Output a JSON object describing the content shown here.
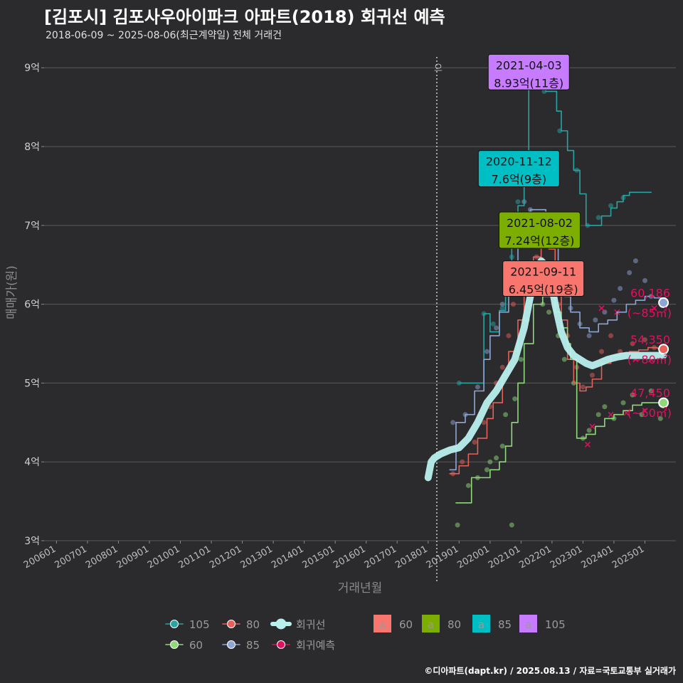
{
  "title": "[김포시] 김포사우아이파크 아파트(2018) 회귀선 예측",
  "subtitle": "2018-06-09 ~ 2025-08-06(최근계약일) 전체 거래건",
  "caption": "©디아파트(dapt.kr) / 2025.08.13 / 자료=국토교통부 실거래가",
  "colors": {
    "background": "#2b2b2d",
    "s105": "#2aa3a3",
    "s80": "#e8605a",
    "s85": "#8ea6d6",
    "s60": "#8fd97a",
    "regression": "#b8f0ee",
    "predict": "#e0115f",
    "label60": "#f8766d",
    "label80": "#7cae00",
    "label85": "#00bfc4",
    "label105": "#c77cff"
  },
  "chart_data": {
    "type": "line",
    "xlabel": "거래년월",
    "ylabel": "매매가(원)",
    "ylim": [
      3,
      9.3
    ],
    "yticks": [
      3,
      4,
      5,
      6,
      7,
      8,
      9
    ],
    "ytick_labels": [
      "3억",
      "4억",
      "5억",
      "6억",
      "7억",
      "8억",
      "9억"
    ],
    "xlim": [
      2005.6,
      2026.0
    ],
    "xticks": [
      2006.0,
      2007.0,
      2008.0,
      2009.0,
      2010.0,
      2011.0,
      2012.0,
      2013.0,
      2014.0,
      2015.0,
      2016.0,
      2017.0,
      2018.0,
      2019.0,
      2020.0,
      2021.0,
      2022.0,
      2023.0,
      2024.0,
      2025.0
    ],
    "xtick_labels": [
      "200601",
      "200701",
      "200801",
      "200901",
      "201001",
      "201101",
      "201201",
      "201301",
      "201401",
      "201501",
      "201601",
      "201701",
      "201801",
      "201901",
      "202001",
      "202101",
      "202201",
      "202301",
      "202401",
      "202501"
    ],
    "vline_x": 2018.28,
    "vline_text": "으",
    "grid": true,
    "series": [
      {
        "name": "105",
        "color": "#2aa3a3",
        "x": [
          2019.0,
          2019.5,
          2019.8,
          2020.0,
          2020.3,
          2020.5,
          2020.7,
          2020.9,
          2021.1,
          2021.25,
          2021.4,
          2021.6,
          2021.8,
          2022.0,
          2022.15,
          2022.3,
          2022.5,
          2022.7,
          2022.9,
          2023.1,
          2023.3,
          2023.6,
          2023.9,
          2024.1,
          2024.3,
          2024.5,
          2024.8,
          2025.2
        ],
        "y": [
          5.0,
          5.0,
          5.88,
          5.65,
          5.92,
          6.3,
          6.78,
          7.25,
          7.82,
          8.93,
          8.93,
          8.93,
          8.7,
          8.7,
          8.45,
          8.2,
          7.95,
          7.7,
          7.4,
          7.0,
          7.0,
          7.12,
          7.22,
          7.3,
          7.38,
          7.42,
          7.42,
          7.42
        ]
      },
      {
        "name": "85",
        "color": "#8ea6d6",
        "x": [
          2018.7,
          2018.9,
          2019.2,
          2019.5,
          2019.8,
          2020.0,
          2020.3,
          2020.6,
          2020.9,
          2021.1,
          2021.3,
          2021.5,
          2021.8,
          2022.0,
          2022.2,
          2022.4,
          2022.6,
          2022.9,
          2023.2,
          2023.5,
          2023.8,
          2024.1,
          2024.4,
          2024.7,
          2025.0,
          2025.3,
          2025.6
        ],
        "y": [
          3.9,
          4.5,
          4.6,
          4.9,
          5.3,
          5.6,
          5.9,
          6.3,
          6.75,
          7.1,
          7.2,
          7.2,
          7.0,
          6.8,
          6.5,
          6.1,
          5.9,
          5.7,
          5.65,
          5.75,
          5.8,
          5.9,
          6.0,
          6.05,
          6.1,
          6.08,
          6.02
        ]
      },
      {
        "name": "80",
        "color": "#e8605a",
        "x": [
          2018.7,
          2019.0,
          2019.3,
          2019.6,
          2019.9,
          2020.1,
          2020.4,
          2020.6,
          2020.9,
          2021.1,
          2021.4,
          2021.65,
          2021.9,
          2022.1,
          2022.3,
          2022.5,
          2022.7,
          2022.9,
          2023.1,
          2023.3,
          2023.6,
          2023.9,
          2024.2,
          2024.5,
          2024.8,
          2025.1,
          2025.4,
          2025.6
        ],
        "y": [
          3.85,
          3.95,
          4.1,
          4.3,
          4.55,
          4.75,
          5.1,
          5.4,
          5.8,
          6.2,
          6.6,
          6.95,
          6.7,
          6.3,
          5.8,
          5.3,
          5.0,
          4.9,
          4.95,
          5.05,
          5.25,
          5.35,
          5.38,
          5.4,
          5.42,
          5.45,
          5.44,
          5.43
        ]
      },
      {
        "name": "60",
        "color": "#8fd97a",
        "x": [
          2018.9,
          2019.1,
          2019.4,
          2019.7,
          2020.0,
          2020.3,
          2020.5,
          2020.7,
          2020.9,
          2021.1,
          2021.4,
          2021.7,
          2021.9,
          2022.1,
          2022.3,
          2022.5,
          2022.6,
          2022.8,
          2023.1,
          2023.4,
          2023.7,
          2024.0,
          2024.3,
          2024.6,
          2024.9,
          2025.2,
          2025.6
        ],
        "y": [
          3.48,
          3.48,
          3.8,
          3.8,
          3.9,
          4.0,
          4.2,
          4.5,
          5.0,
          5.5,
          6.0,
          6.1,
          6.1,
          5.9,
          5.7,
          5.5,
          5.3,
          4.3,
          4.35,
          4.45,
          4.55,
          4.6,
          4.65,
          4.72,
          4.75,
          4.75,
          4.75
        ]
      },
      {
        "name": "회귀선",
        "color": "#b8f0ee",
        "x": [
          2018.0,
          2018.1,
          2018.2,
          2018.4,
          2018.7,
          2019.0,
          2019.3,
          2019.6,
          2019.9,
          2020.2,
          2020.5,
          2020.8,
          2021.1,
          2021.4,
          2021.65,
          2021.9,
          2022.1,
          2022.3,
          2022.5,
          2022.7,
          2022.9,
          2023.1,
          2023.3,
          2023.5,
          2023.8,
          2024.1,
          2024.4,
          2024.7,
          2025.0,
          2025.3,
          2025.6
        ],
        "y": [
          3.8,
          4.0,
          4.05,
          4.1,
          4.15,
          4.18,
          4.3,
          4.5,
          4.75,
          4.9,
          5.1,
          5.3,
          5.7,
          6.3,
          6.55,
          6.45,
          6.0,
          5.65,
          5.45,
          5.35,
          5.3,
          5.25,
          5.22,
          5.25,
          5.3,
          5.33,
          5.35,
          5.35,
          5.35,
          5.35,
          5.35
        ]
      }
    ],
    "scatter_points": {
      "105": [
        [
          2019.0,
          5.0
        ],
        [
          2019.8,
          5.88
        ],
        [
          2020.1,
          5.75
        ],
        [
          2020.4,
          5.95
        ],
        [
          2020.7,
          6.6
        ],
        [
          2020.9,
          7.3
        ],
        [
          2021.3,
          8.92
        ],
        [
          2021.75,
          8.7
        ],
        [
          2022.25,
          8.2
        ],
        [
          2022.8,
          7.7
        ],
        [
          2023.15,
          7.0
        ],
        [
          2023.5,
          7.1
        ],
        [
          2023.9,
          7.25
        ],
        [
          2024.3,
          7.35
        ]
      ],
      "85": [
        [
          2018.8,
          4.5
        ],
        [
          2019.2,
          4.6
        ],
        [
          2019.6,
          4.95
        ],
        [
          2019.9,
          5.4
        ],
        [
          2020.2,
          5.7
        ],
        [
          2020.4,
          6.0
        ],
        [
          2020.6,
          6.3
        ],
        [
          2020.8,
          6.9
        ],
        [
          2021.1,
          7.3
        ],
        [
          2021.3,
          7.2
        ],
        [
          2021.6,
          7.1
        ],
        [
          2021.9,
          7.0
        ],
        [
          2022.1,
          6.8
        ],
        [
          2022.4,
          6.4
        ],
        [
          2022.6,
          5.95
        ],
        [
          2022.9,
          5.75
        ],
        [
          2023.2,
          5.6
        ],
        [
          2023.4,
          5.8
        ],
        [
          2023.7,
          5.9
        ],
        [
          2024.0,
          6.05
        ],
        [
          2024.2,
          6.2
        ],
        [
          2024.5,
          6.4
        ],
        [
          2024.7,
          6.55
        ],
        [
          2025.0,
          6.3
        ],
        [
          2025.2,
          6.1
        ]
      ],
      "80": [
        [
          2018.8,
          3.85
        ],
        [
          2019.1,
          4.0
        ],
        [
          2019.5,
          4.25
        ],
        [
          2019.8,
          4.5
        ],
        [
          2020.0,
          4.7
        ],
        [
          2020.2,
          5.0
        ],
        [
          2020.4,
          5.2
        ],
        [
          2020.6,
          5.6
        ],
        [
          2020.75,
          6.0
        ],
        [
          2020.95,
          6.2
        ],
        [
          2021.2,
          6.5
        ],
        [
          2021.5,
          6.6
        ],
        [
          2021.7,
          6.85
        ],
        [
          2022.0,
          6.4
        ],
        [
          2022.2,
          6.0
        ],
        [
          2022.5,
          5.6
        ],
        [
          2022.8,
          5.2
        ],
        [
          2023.0,
          4.95
        ],
        [
          2023.3,
          5.1
        ],
        [
          2023.6,
          5.4
        ],
        [
          2023.9,
          5.6
        ],
        [
          2024.2,
          5.4
        ],
        [
          2024.6,
          5.5
        ],
        [
          2025.0,
          5.55
        ],
        [
          2025.3,
          5.45
        ]
      ],
      "60": [
        [
          2018.95,
          3.2
        ],
        [
          2019.3,
          3.7
        ],
        [
          2019.6,
          3.8
        ],
        [
          2019.9,
          3.9
        ],
        [
          2020.0,
          4.0
        ],
        [
          2020.2,
          4.05
        ],
        [
          2020.4,
          4.2
        ],
        [
          2020.5,
          4.6
        ],
        [
          2020.7,
          3.2
        ],
        [
          2020.8,
          4.8
        ],
        [
          2021.0,
          5.3
        ],
        [
          2021.2,
          5.8
        ],
        [
          2021.45,
          6.3
        ],
        [
          2021.7,
          6.0
        ],
        [
          2021.9,
          5.9
        ],
        [
          2022.2,
          5.6
        ],
        [
          2022.4,
          5.3
        ],
        [
          2022.7,
          5.0
        ],
        [
          2023.0,
          4.3
        ],
        [
          2023.2,
          4.4
        ],
        [
          2023.5,
          4.6
        ],
        [
          2023.7,
          4.7
        ],
        [
          2024.0,
          4.55
        ],
        [
          2024.3,
          4.75
        ],
        [
          2024.6,
          4.85
        ],
        [
          2024.9,
          4.6
        ],
        [
          2025.2,
          4.9
        ],
        [
          2025.5,
          4.55
        ]
      ]
    },
    "predict_points": [
      [
        2023.15,
        4.22
      ],
      [
        2023.3,
        4.45
      ],
      [
        2023.6,
        5.95
      ],
      [
        2023.9,
        4.6
      ],
      [
        2024.1,
        5.9
      ],
      [
        2024.4,
        4.62
      ],
      [
        2024.7,
        5.3
      ],
      [
        2025.0,
        4.65
      ],
      [
        2025.2,
        5.3
      ],
      [
        2025.3,
        5.95
      ]
    ],
    "end_points": [
      {
        "series": "85",
        "x": 2025.6,
        "y": 6.02,
        "value": "60,186",
        "area": "(~85㎡)"
      },
      {
        "series": "80",
        "x": 2025.6,
        "y": 5.43,
        "value": "54,350",
        "area": "(~80㎡)"
      },
      {
        "series": "60",
        "x": 2025.6,
        "y": 4.75,
        "value": "47,450",
        "area": "(~60㎡)"
      }
    ],
    "annotations": [
      {
        "label_key": "label105",
        "date": "2021-04-03",
        "price": "8.93억(11층)",
        "cx": 2021.25,
        "y_top": 9.17,
        "y_bottom": 8.72
      },
      {
        "label_key": "label85",
        "date": "2020-11-12",
        "price": "7.6억(9층)",
        "cx": 2020.93,
        "y_top": 7.95,
        "y_bottom": 7.49
      },
      {
        "label_key": "label80",
        "date": "2021-08-02",
        "price": "7.24억(12층)",
        "cx": 2021.6,
        "y_top": 7.17,
        "y_bottom": 6.71
      },
      {
        "label_key": "label60",
        "date": "2021-09-11",
        "price": "6.45억(19층)",
        "cx": 2021.72,
        "y_top": 6.55,
        "y_bottom": 6.1
      }
    ],
    "legend": {
      "position": "bottom",
      "line_items": [
        "105",
        "80",
        "회귀선",
        "60",
        "85",
        "회귀예측"
      ],
      "box_items": [
        {
          "letter": "a",
          "name": "60",
          "color_key": "label60"
        },
        {
          "letter": "a",
          "name": "80",
          "color_key": "label80"
        },
        {
          "letter": "a",
          "name": "85",
          "color_key": "label85"
        },
        {
          "letter": "a",
          "name": "105",
          "color_key": "label105"
        }
      ]
    }
  }
}
